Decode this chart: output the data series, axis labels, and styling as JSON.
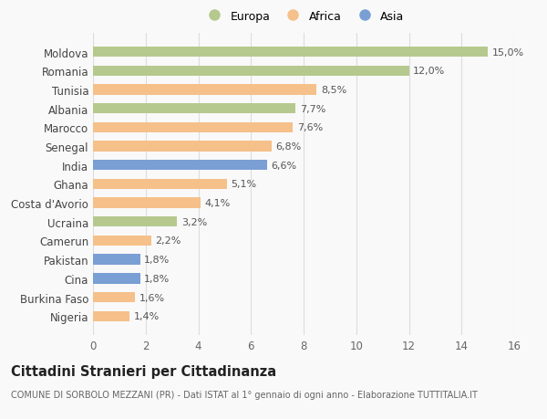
{
  "categories": [
    "Moldova",
    "Romania",
    "Tunisia",
    "Albania",
    "Marocco",
    "Senegal",
    "India",
    "Ghana",
    "Costa d'Avorio",
    "Ucraina",
    "Camerun",
    "Pakistan",
    "Cina",
    "Burkina Faso",
    "Nigeria"
  ],
  "values": [
    15.0,
    12.0,
    8.5,
    7.7,
    7.6,
    6.8,
    6.6,
    5.1,
    4.1,
    3.2,
    2.2,
    1.8,
    1.8,
    1.6,
    1.4
  ],
  "labels": [
    "15,0%",
    "12,0%",
    "8,5%",
    "7,7%",
    "7,6%",
    "6,8%",
    "6,6%",
    "5,1%",
    "4,1%",
    "3,2%",
    "2,2%",
    "1,8%",
    "1,8%",
    "1,6%",
    "1,4%"
  ],
  "colors": [
    "#b5c98e",
    "#b5c98e",
    "#f5c08a",
    "#b5c98e",
    "#f5c08a",
    "#f5c08a",
    "#7a9fd4",
    "#f5c08a",
    "#f5c08a",
    "#b5c98e",
    "#f5c08a",
    "#7a9fd4",
    "#7a9fd4",
    "#f5c08a",
    "#f5c08a"
  ],
  "legend_labels": [
    "Europa",
    "Africa",
    "Asia"
  ],
  "legend_colors": [
    "#b5c98e",
    "#f5c08a",
    "#7a9fd4"
  ],
  "title": "Cittadini Stranieri per Cittadinanza",
  "subtitle": "COMUNE DI SORBOLO MEZZANI (PR) - Dati ISTAT al 1° gennaio di ogni anno - Elaborazione TUTTITALIA.IT",
  "xlim": [
    0,
    16
  ],
  "xticks": [
    0,
    2,
    4,
    6,
    8,
    10,
    12,
    14,
    16
  ],
  "background_color": "#f9f9f9",
  "grid_color": "#dddddd",
  "bar_label_fontsize": 8,
  "ytick_fontsize": 8.5,
  "xtick_fontsize": 8.5,
  "title_fontsize": 10.5,
  "subtitle_fontsize": 7
}
